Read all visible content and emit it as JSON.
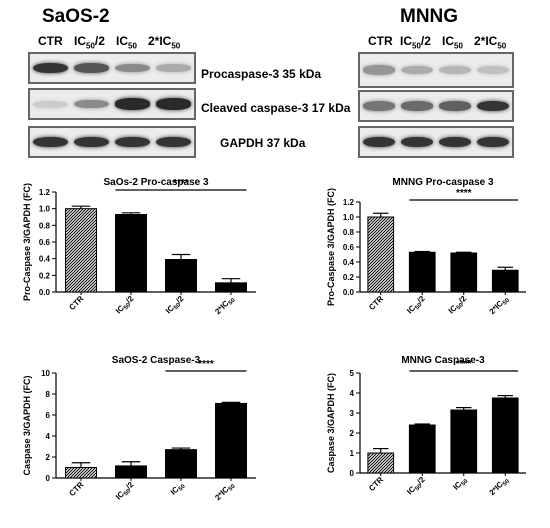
{
  "left_panel": {
    "title": "SaOS-2",
    "lanes": [
      {
        "main": "CTR",
        "sub": "",
        "tail": ""
      },
      {
        "main": "IC",
        "sub": "50",
        "tail": "/2"
      },
      {
        "main": "IC",
        "sub": "50",
        "tail": ""
      },
      {
        "main": "2*IC",
        "sub": "50",
        "tail": ""
      }
    ],
    "band_intensities": {
      "procaspase": [
        0.85,
        0.7,
        0.45,
        0.3
      ],
      "cleaved": [
        0.15,
        0.45,
        0.9,
        0.9
      ],
      "gapdh": [
        0.85,
        0.85,
        0.85,
        0.85
      ]
    }
  },
  "right_panel": {
    "title": "MNNG",
    "lanes": [
      {
        "main": "CTR",
        "sub": "",
        "tail": ""
      },
      {
        "main": "IC",
        "sub": "50",
        "tail": "/2"
      },
      {
        "main": "IC",
        "sub": "50",
        "tail": ""
      },
      {
        "main": "2*IC",
        "sub": "50",
        "tail": ""
      }
    ],
    "band_intensities": {
      "procaspase": [
        0.4,
        0.3,
        0.25,
        0.2
      ],
      "cleaved": [
        0.55,
        0.6,
        0.65,
        0.85
      ],
      "gapdh": [
        0.85,
        0.85,
        0.85,
        0.85
      ]
    }
  },
  "band_labels": {
    "procaspase": "Procaspase-3 35 kDa",
    "cleaved": "Cleaved caspase-3 17 kDa",
    "gapdh": "GAPDH 37 kDa"
  },
  "colors": {
    "bar_fill": "#000000",
    "ctr_fill": "hatched",
    "blot_bg": "#ececec",
    "blot_border": "#666666"
  },
  "chart_data": [
    {
      "type": "bar",
      "title": "SaOs-2 Pro-caspase 3",
      "ylabel": "Pro-Caspase 3/GAPDH (FC)",
      "categories": [
        {
          "main": "CTR",
          "sub": "",
          "tail": ""
        },
        {
          "main": "IC",
          "sub": "50",
          "tail": "/2"
        },
        {
          "main": "IC",
          "sub": "50",
          "tail": "/2"
        },
        {
          "main": "2*IC",
          "sub": "50",
          "tail": ""
        }
      ],
      "values": [
        1.0,
        0.93,
        0.39,
        0.11
      ],
      "errors": [
        0.03,
        0.02,
        0.06,
        0.05
      ],
      "ylim": [
        0,
        1.2
      ],
      "yticks": [
        "0.0",
        "0.2",
        "0.4",
        "0.6",
        "0.8",
        "1.0",
        "1.2"
      ],
      "significance": "****",
      "sig_span": [
        1,
        3
      ]
    },
    {
      "type": "bar",
      "title": "MNNG Pro-caspase 3",
      "ylabel": "Pro-Caspase 3/GAPDH (FC)",
      "categories": [
        {
          "main": "CTR",
          "sub": "",
          "tail": ""
        },
        {
          "main": "IC",
          "sub": "50",
          "tail": "/2"
        },
        {
          "main": "IC",
          "sub": "50",
          "tail": "/2"
        },
        {
          "main": "2*IC",
          "sub": "50",
          "tail": ""
        }
      ],
      "values": [
        1.0,
        0.53,
        0.52,
        0.29
      ],
      "errors": [
        0.05,
        0.01,
        0.01,
        0.04
      ],
      "ylim": [
        0,
        1.2
      ],
      "yticks": [
        "0.0",
        "0.2",
        "0.4",
        "0.6",
        "0.8",
        "1.0",
        "1.2"
      ],
      "significance": "****",
      "sig_span": [
        1,
        3
      ]
    },
    {
      "type": "bar",
      "title": "SaOS-2 Caspase-3",
      "ylabel": "Caspase 3/GAPDH (FC)",
      "categories": [
        {
          "main": "CTR",
          "sub": "",
          "tail": ""
        },
        {
          "main": "IC",
          "sub": "50",
          "tail": "/2"
        },
        {
          "main": "IC",
          "sub": "50",
          "tail": ""
        },
        {
          "main": "2*IC",
          "sub": "50",
          "tail": ""
        }
      ],
      "values": [
        1.0,
        1.15,
        2.7,
        7.1
      ],
      "errors": [
        0.45,
        0.4,
        0.15,
        0.1
      ],
      "ylim": [
        0,
        10
      ],
      "yticks": [
        "0",
        "2",
        "4",
        "6",
        "8",
        "10"
      ],
      "significance": "****",
      "sig_span": [
        2,
        3
      ]
    },
    {
      "type": "bar",
      "title": "MNNG Caspase-3",
      "ylabel": "Caspase 3/GAPDH (FC)",
      "categories": [
        {
          "main": "CTR",
          "sub": "",
          "tail": ""
        },
        {
          "main": "IC",
          "sub": "50",
          "tail": "/2"
        },
        {
          "main": "IC",
          "sub": "50",
          "tail": ""
        },
        {
          "main": "2*IC",
          "sub": "50",
          "tail": ""
        }
      ],
      "values": [
        1.0,
        2.4,
        3.15,
        3.75
      ],
      "errors": [
        0.22,
        0.05,
        0.12,
        0.12
      ],
      "ylim": [
        0,
        5
      ],
      "yticks": [
        "0",
        "1",
        "2",
        "3",
        "4",
        "5"
      ],
      "significance": "****",
      "sig_span": [
        1,
        3
      ]
    }
  ]
}
